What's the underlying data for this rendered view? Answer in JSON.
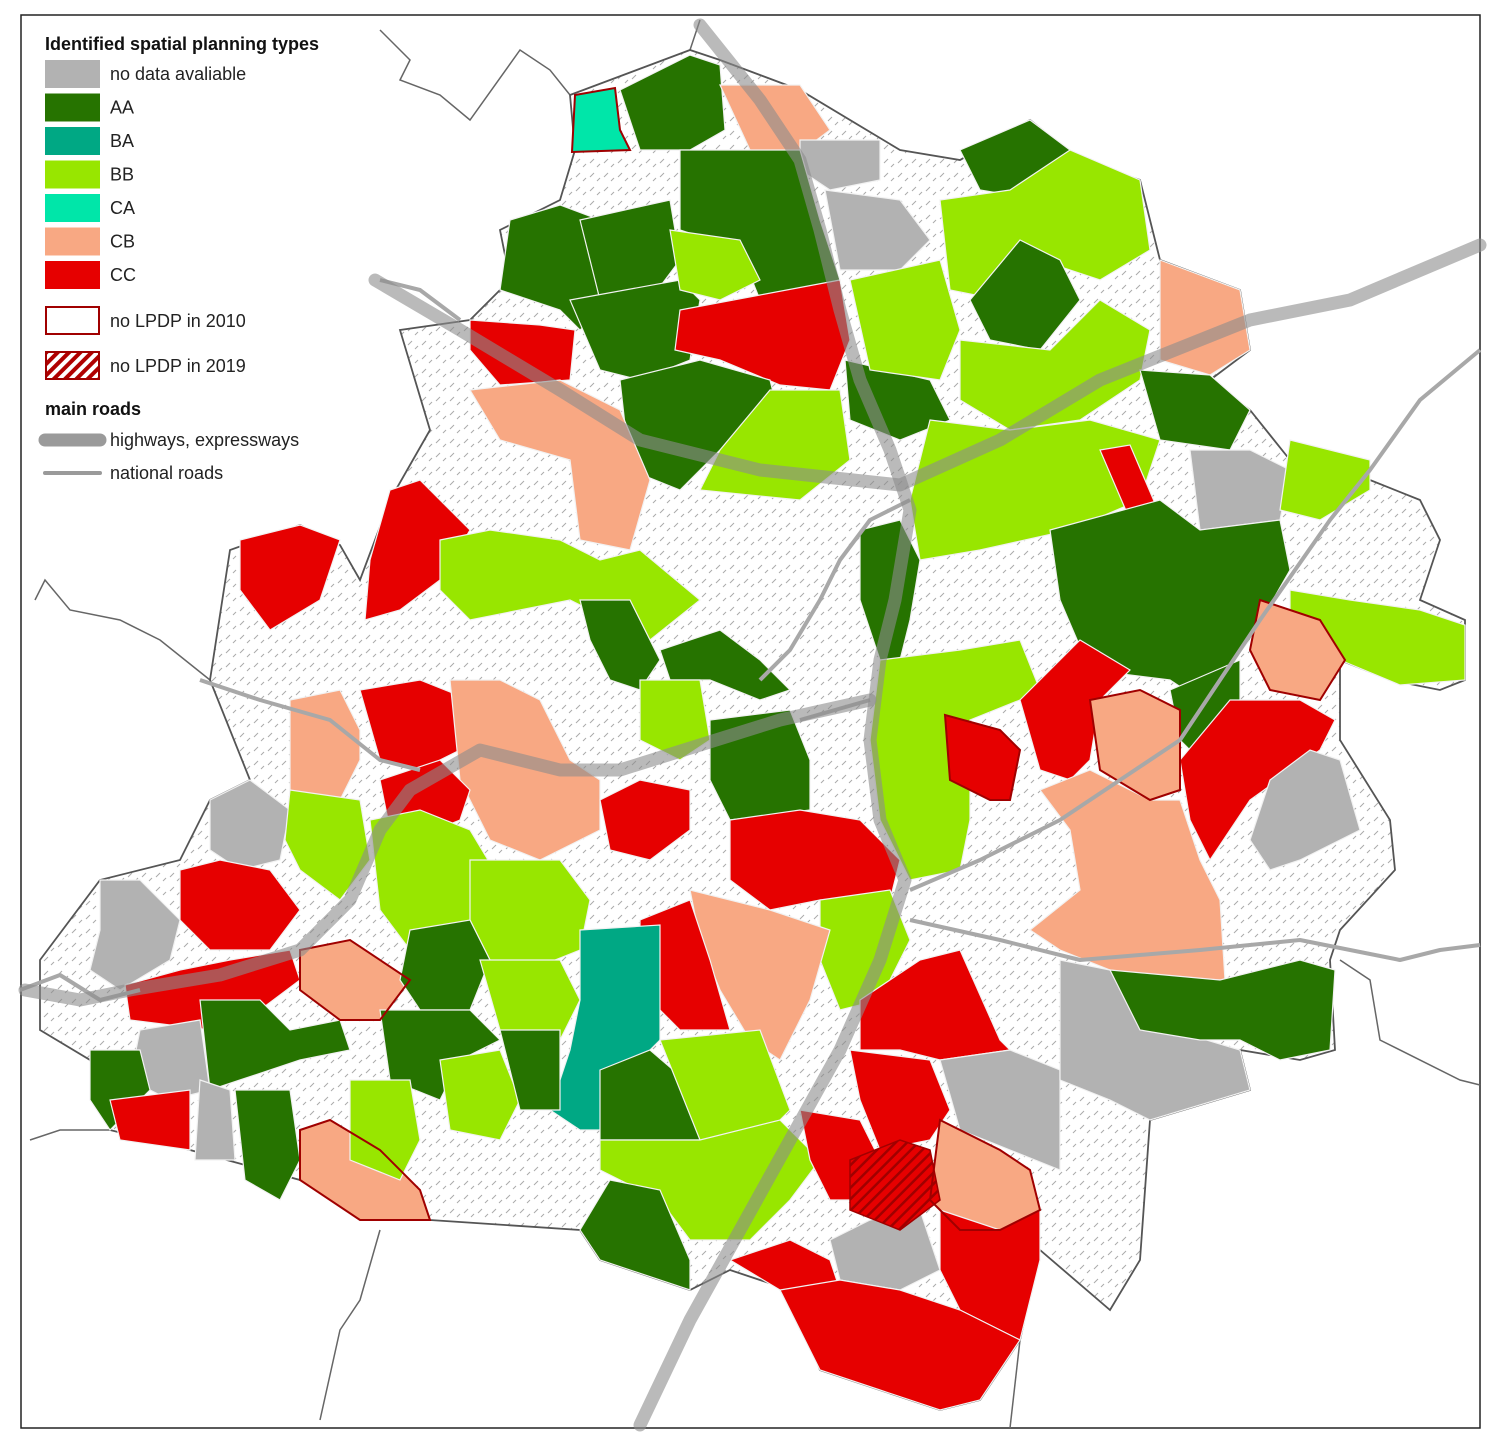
{
  "legend": {
    "title": "Identified spatial planning types",
    "items": [
      {
        "label": "no data avaliable",
        "color": "#b2b2b2"
      },
      {
        "label": "AA",
        "color": "#267300"
      },
      {
        "label": "BA",
        "color": "#00a884"
      },
      {
        "label": "BB",
        "color": "#98e600"
      },
      {
        "label": "CA",
        "color": "#00e6a9"
      },
      {
        "label": "CB",
        "color": "#f8a883"
      },
      {
        "label": "CC",
        "color": "#e60000"
      }
    ],
    "boundaries": [
      {
        "label": "no LPDP in 2010"
      },
      {
        "label": "no LPDP in 2019"
      }
    ],
    "roads_title": "main roads",
    "roads": [
      {
        "label": "highways, expressways"
      },
      {
        "label": "national roads"
      }
    ]
  }
}
